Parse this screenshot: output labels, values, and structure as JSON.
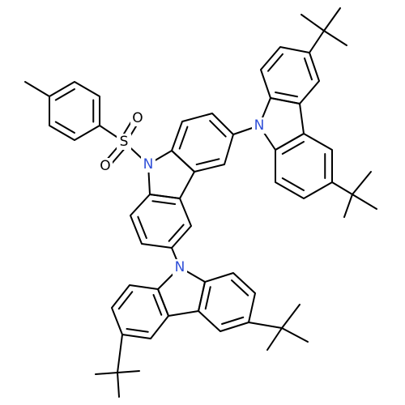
{
  "atoms": [
    {
      "label": "N"
    },
    {
      "label": "N"
    },
    {
      "label": "N"
    },
    {
      "label": "S"
    },
    {
      "label": "O"
    },
    {
      "label": "O"
    }
  ]
}
